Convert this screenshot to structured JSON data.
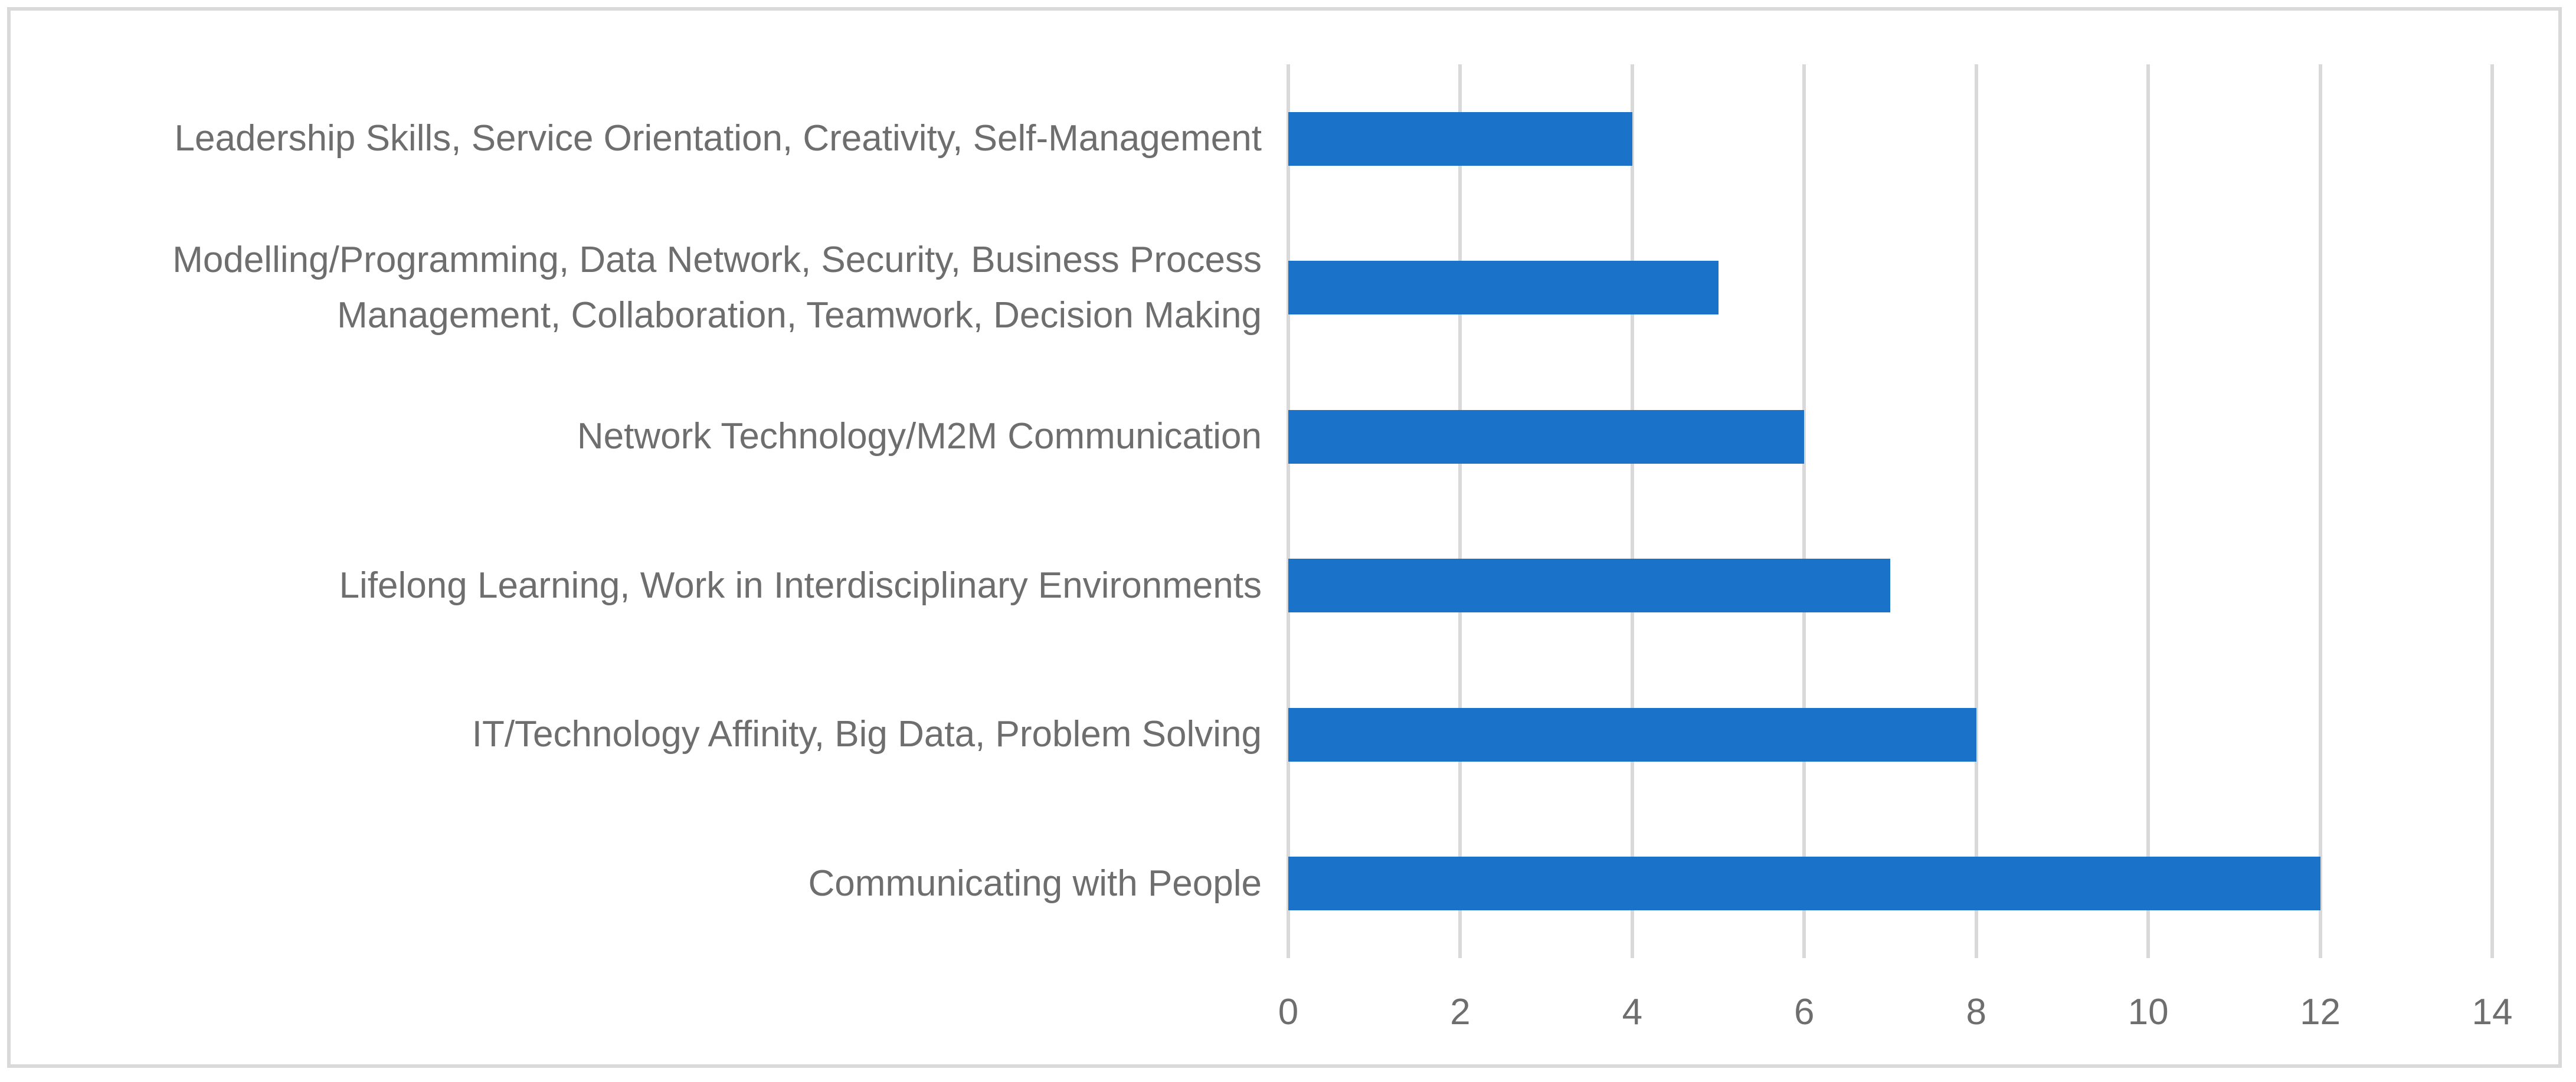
{
  "figure": {
    "background_color": "#FFFFFF",
    "border_color": "#D9D9D9",
    "gridline_color": "#D9D9D9",
    "text_color": "#6E6E6E",
    "bar_color": "#1A73C8"
  },
  "chart_data": {
    "type": "bar",
    "orientation": "horizontal",
    "title": "",
    "xlabel": "",
    "ylabel": "",
    "row_order": "top_to_bottom",
    "categories": [
      "Leadership Skills, Service Orientation, Creativity, Self-Management",
      "Modelling/Programming, Data Network, Security, Business Process\nManagement, Collaboration, Teamwork, Decision Making",
      "Network Technology/M2M Communication",
      "Lifelong Learning, Work in Interdisciplinary Environments",
      "IT/Technology Affinity, Big Data, Problem Solving",
      "Communicating with People"
    ],
    "values": [
      4,
      5,
      6,
      7,
      8,
      12
    ],
    "xlim": [
      0,
      14
    ],
    "xticks": [
      0,
      2,
      4,
      6,
      8,
      10,
      12,
      14
    ],
    "xtick_labels": [
      "0",
      "2",
      "4",
      "6",
      "8",
      "10",
      "12",
      "14"
    ],
    "grid": true,
    "legend": false
  }
}
